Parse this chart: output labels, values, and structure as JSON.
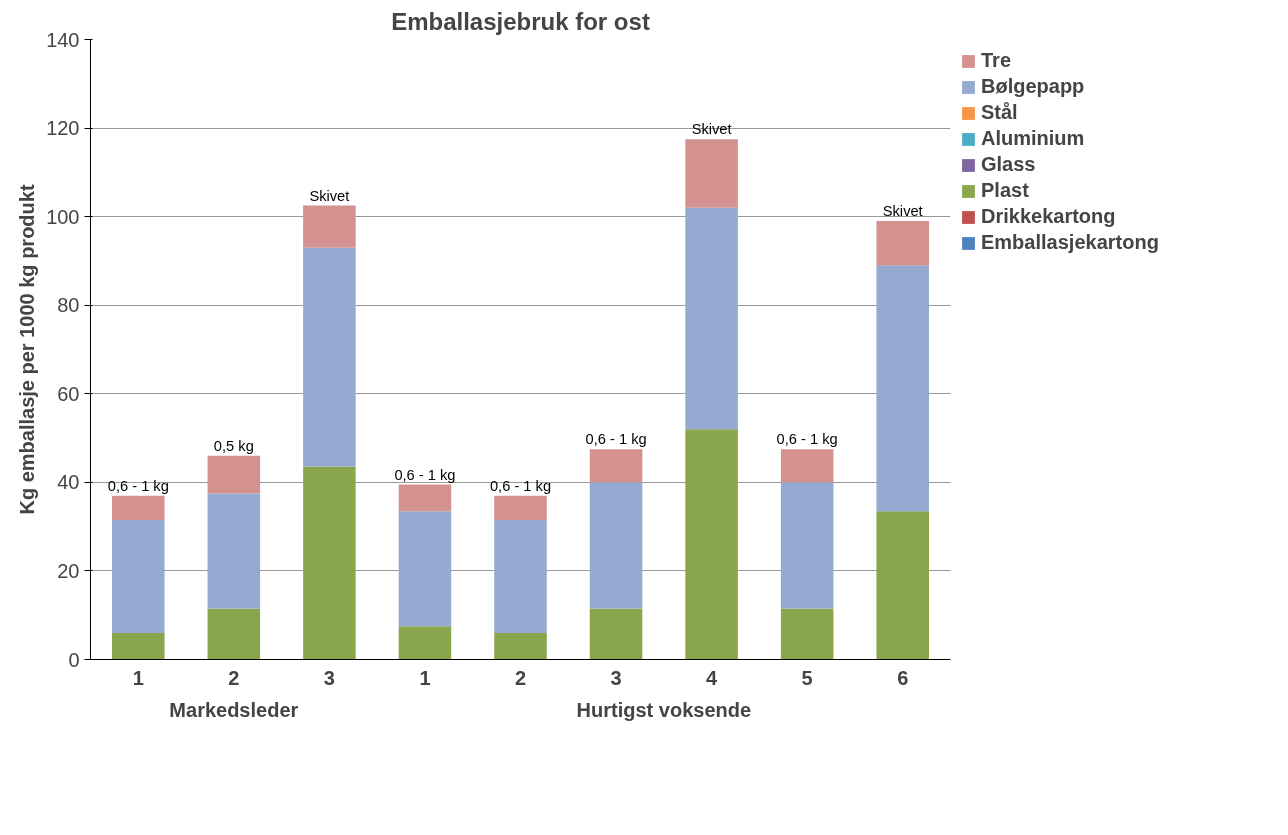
{
  "chart_data": {
    "type": "bar",
    "title": "Emballasjebruk for ost",
    "ylabel": "Kg emballasje per 1000 kg produkt",
    "categories": [
      "1",
      "2",
      "3",
      "1",
      "2",
      "3",
      "4",
      "5",
      "6"
    ],
    "annotations": [
      "Markedsleder",
      "Hurtigst voksende",
      {
        "text": "0,6 - 1 kg",
        "y": 37
      },
      {
        "text": "0,5 kg",
        "y": 46
      },
      {
        "text": "Skivet",
        "y": 102.5
      },
      {
        "text": "0,6 - 1 kg",
        "y": 39.5
      },
      {
        "text": "0,6 - 1 kg",
        "y": 37
      },
      {
        "text": "0,6 - 1 kg",
        "y": 47.5
      },
      {
        "text": "Skivet",
        "y": 117.5
      },
      {
        "text": "0,6 - 1 kg",
        "y": 47.5
      },
      {
        "text": "Skivet",
        "y": 99
      }
    ],
    "stacked": true,
    "series": [
      {
        "name": "Emballasjekartong",
        "color": "#4f81bd",
        "values": [
          0,
          0,
          0,
          0,
          0,
          0,
          0,
          0,
          0
        ]
      },
      {
        "name": "Drikkekartong",
        "color": "#c0504d",
        "values": [
          0,
          0,
          0,
          0,
          0,
          0,
          0,
          0,
          0
        ]
      },
      {
        "name": "Plast",
        "color": "#8aa64d",
        "values": [
          6,
          11.5,
          43.5,
          7.5,
          6,
          11.5,
          52,
          11.5,
          33.5
        ]
      },
      {
        "name": "Glass",
        "color": "#8064a2",
        "values": [
          0,
          0,
          0,
          0,
          0,
          0,
          0,
          0,
          0
        ]
      },
      {
        "name": "Aluminium",
        "color": "#4bacc6",
        "values": [
          0,
          0,
          0,
          0,
          0,
          0,
          0,
          0,
          0
        ]
      },
      {
        "name": "Stål",
        "color": "#f79646",
        "values": [
          0,
          0,
          0,
          0,
          0,
          0,
          0,
          0,
          0
        ]
      },
      {
        "name": "Bølgepapp",
        "color": "#95a9d1",
        "values": [
          25.5,
          26,
          49.5,
          26,
          25.5,
          28.5,
          50,
          28.5,
          55.5
        ]
      },
      {
        "name": "Tre",
        "color": "#d39190",
        "values": [
          5.5,
          8.5,
          9.5,
          6,
          5.5,
          7.5,
          15.5,
          7.5,
          10
        ]
      }
    ],
    "ylim": [
      0,
      140
    ],
    "yticks": [
      0,
      20,
      40,
      60,
      80,
      100,
      120,
      140
    ],
    "grid": "y",
    "legend": "right"
  }
}
